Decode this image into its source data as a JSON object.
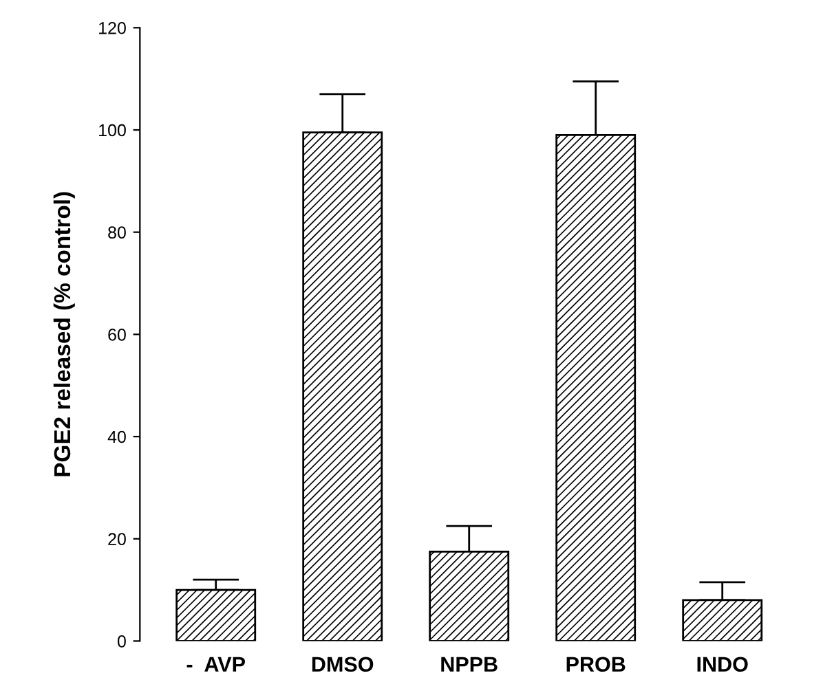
{
  "chart_data": {
    "type": "bar",
    "ylabel": "PGE2 released (% control)",
    "categories": [
      "-  AVP",
      "DMSO",
      "NPPB",
      "PROB",
      "INDO"
    ],
    "values": [
      10,
      99.5,
      17.5,
      99,
      8
    ],
    "errors": [
      [
        10,
        12
      ],
      [
        99.5,
        107
      ],
      [
        17.5,
        22.5
      ],
      [
        99,
        109.5
      ],
      [
        8,
        11.5
      ]
    ],
    "color": "#000000",
    "ylim": [
      0,
      120
    ],
    "yticks": [
      0,
      20,
      40,
      60,
      80,
      100,
      120
    ],
    "grid": false
  }
}
